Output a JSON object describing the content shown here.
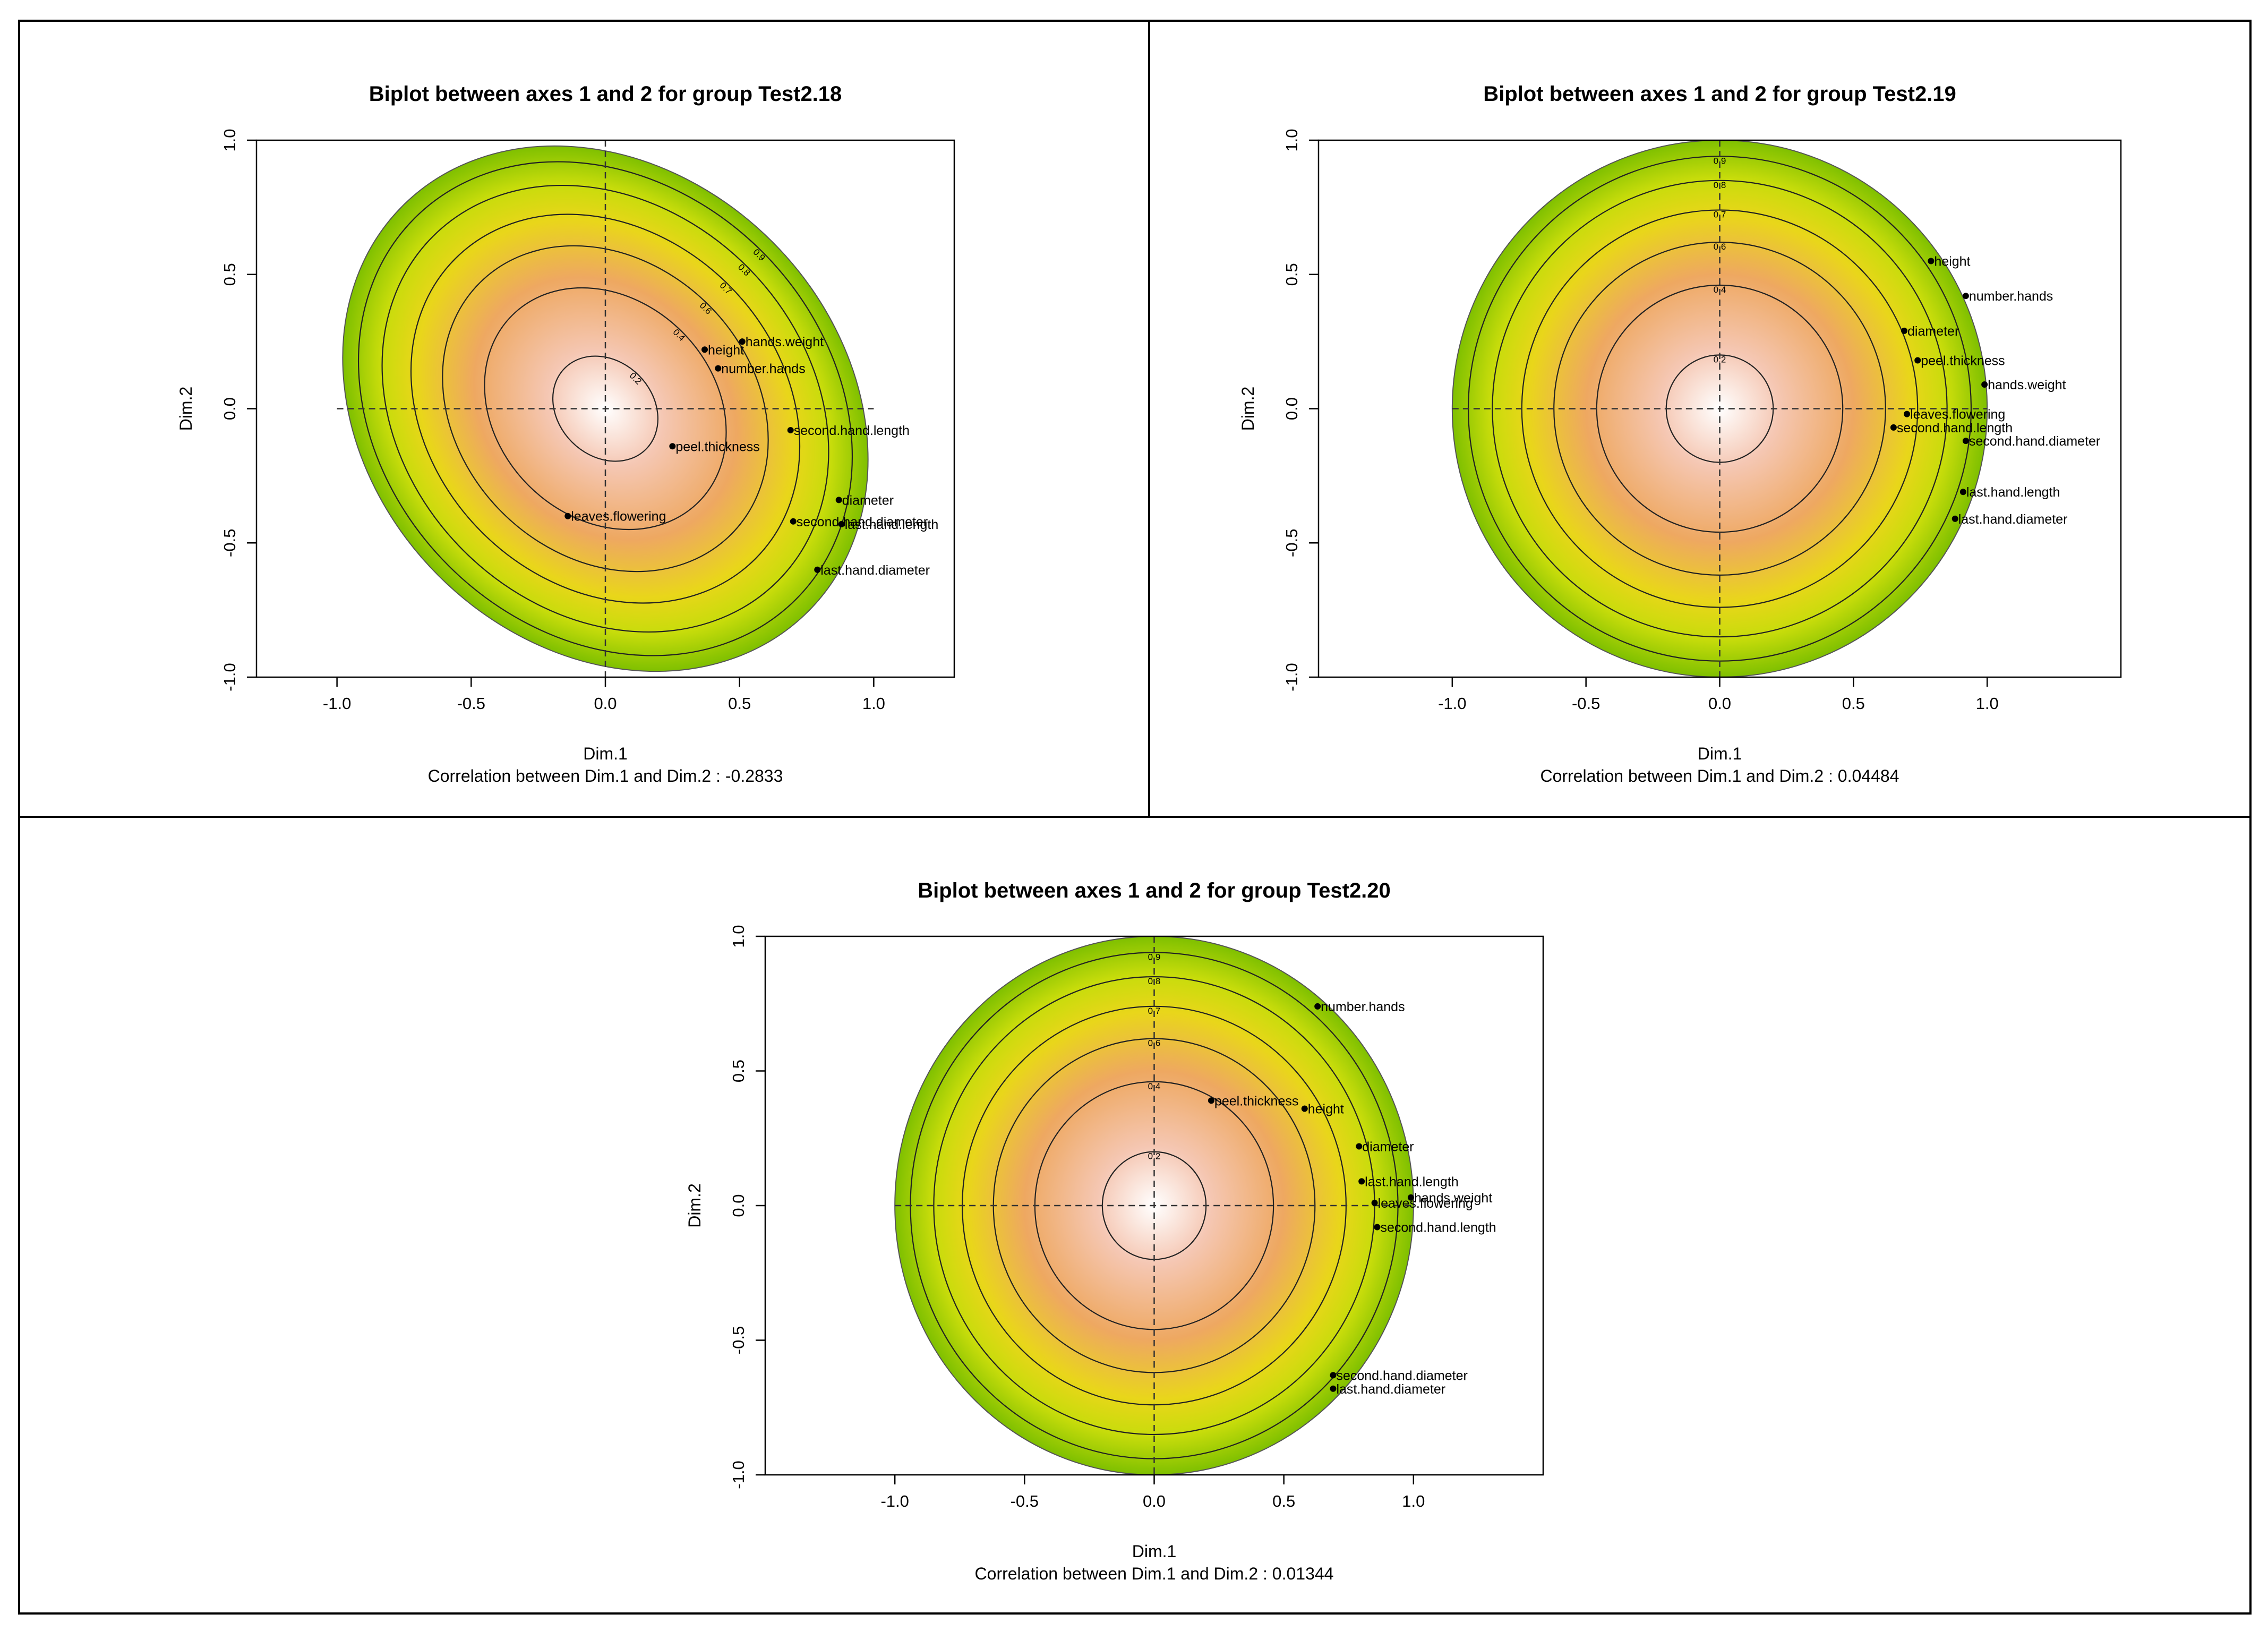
{
  "colors": {
    "border": "#000000",
    "gradient": [
      "#ffffff",
      "#f5c7b3",
      "#eea861",
      "#e9d61a",
      "#c7dc0b",
      "#7fc000"
    ]
  },
  "chart_data": [
    {
      "type": "scatter",
      "title": "Biplot between axes 1 and 2 for group Test2.18",
      "xlabel": "Dim.1",
      "ylabel": "Dim.2",
      "caption": "Correlation between Dim.1 and Dim.2 : -0.2833",
      "correlation": -0.2833,
      "xlim": [
        -1.3,
        1.3
      ],
      "ylim": [
        -1.0,
        1.0
      ],
      "xticks": [
        "-1.0",
        "-0.5",
        "0.0",
        "0.5",
        "1.0"
      ],
      "yticks": [
        "-1.0",
        "-0.5",
        "0.0",
        "0.5",
        "1.0"
      ],
      "contour_levels": [
        "0.2",
        "0.4",
        "0.6",
        "0.7",
        "0.8",
        "0.9"
      ],
      "points": [
        {
          "label": "height",
          "x": 0.37,
          "y": 0.22
        },
        {
          "label": "hands.weight",
          "x": 0.51,
          "y": 0.25
        },
        {
          "label": "number.hands",
          "x": 0.42,
          "y": 0.15
        },
        {
          "label": "second.hand.length",
          "x": 0.69,
          "y": -0.08
        },
        {
          "label": "peel.thickness",
          "x": 0.25,
          "y": -0.14
        },
        {
          "label": "diameter",
          "x": 0.87,
          "y": -0.34
        },
        {
          "label": "second.hand.diameter",
          "x": 0.7,
          "y": -0.42
        },
        {
          "label": "last.hand.length",
          "x": 0.88,
          "y": -0.43
        },
        {
          "label": "leaves.flowering",
          "x": -0.14,
          "y": -0.4
        },
        {
          "label": "last.hand.diameter",
          "x": 0.79,
          "y": -0.6
        }
      ]
    },
    {
      "type": "scatter",
      "title": "Biplot between axes 1 and 2 for group Test2.19",
      "xlabel": "Dim.1",
      "ylabel": "Dim.2",
      "caption": "Correlation between Dim.1 and Dim.2 : 0.04484",
      "correlation": 0.04484,
      "xlim": [
        -1.5,
        1.5
      ],
      "ylim": [
        -1.0,
        1.0
      ],
      "xticks": [
        "-1.0",
        "-0.5",
        "0.0",
        "0.5",
        "1.0"
      ],
      "yticks": [
        "-1.0",
        "-0.5",
        "0.0",
        "0.5",
        "1.0"
      ],
      "contour_levels": [
        "0.2",
        "0.4",
        "0.6",
        "0.7",
        "0.8",
        "0.9"
      ],
      "points": [
        {
          "label": "height",
          "x": 0.79,
          "y": 0.55
        },
        {
          "label": "number.hands",
          "x": 0.92,
          "y": 0.42
        },
        {
          "label": "diameter",
          "x": 0.69,
          "y": 0.29
        },
        {
          "label": "peel.thickness",
          "x": 0.74,
          "y": 0.18
        },
        {
          "label": "hands.weight",
          "x": 0.99,
          "y": 0.09
        },
        {
          "label": "leaves.flowering",
          "x": 0.7,
          "y": -0.02
        },
        {
          "label": "second.hand.length",
          "x": 0.65,
          "y": -0.07
        },
        {
          "label": "second.hand.diameter",
          "x": 0.92,
          "y": -0.12
        },
        {
          "label": "last.hand.length",
          "x": 0.91,
          "y": -0.31
        },
        {
          "label": "last.hand.diameter",
          "x": 0.88,
          "y": -0.41
        }
      ]
    },
    {
      "type": "scatter",
      "title": "Biplot between axes 1 and 2 for group Test2.20",
      "xlabel": "Dim.1",
      "ylabel": "Dim.2",
      "caption": "Correlation between Dim.1 and Dim.2 : 0.01344",
      "correlation": 0.01344,
      "xlim": [
        -1.5,
        1.5
      ],
      "ylim": [
        -1.0,
        1.0
      ],
      "xticks": [
        "-1.0",
        "-0.5",
        "0.0",
        "0.5",
        "1.0"
      ],
      "yticks": [
        "-1.0",
        "-0.5",
        "0.0",
        "0.5",
        "1.0"
      ],
      "contour_levels": [
        "0.2",
        "0.4",
        "0.6",
        "0.7",
        "0.8",
        "0.9"
      ],
      "points": [
        {
          "label": "number.hands",
          "x": 0.63,
          "y": 0.74
        },
        {
          "label": "peel.thickness",
          "x": 0.22,
          "y": 0.39
        },
        {
          "label": "height",
          "x": 0.58,
          "y": 0.36
        },
        {
          "label": "diameter",
          "x": 0.79,
          "y": 0.22
        },
        {
          "label": "last.hand.length",
          "x": 0.8,
          "y": 0.09
        },
        {
          "label": "hands.weight",
          "x": 0.99,
          "y": 0.03
        },
        {
          "label": "leaves.flowering",
          "x": 0.85,
          "y": 0.01
        },
        {
          "label": "second.hand.length",
          "x": 0.86,
          "y": -0.08
        },
        {
          "label": "second.hand.diameter",
          "x": 0.69,
          "y": -0.63
        },
        {
          "label": "last.hand.diameter",
          "x": 0.69,
          "y": -0.68
        }
      ]
    }
  ]
}
